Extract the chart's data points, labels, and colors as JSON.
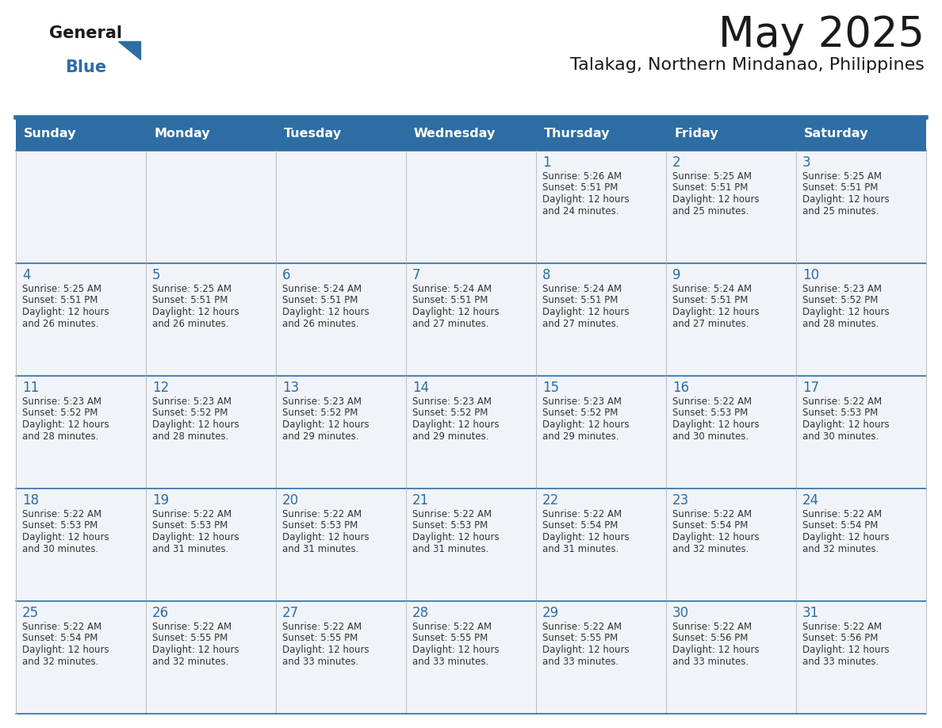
{
  "title": "May 2025",
  "subtitle": "Talakag, Northern Mindanao, Philippines",
  "days_of_week": [
    "Sunday",
    "Monday",
    "Tuesday",
    "Wednesday",
    "Thursday",
    "Friday",
    "Saturday"
  ],
  "header_bg": "#2E6DA4",
  "header_text": "#FFFFFF",
  "row_bg": "#F0F4F8",
  "day_number_color": "#2E6DA4",
  "cell_text_color": "#333333",
  "border_color": "#2E6DA4",
  "grid_line_color": "#AAAAAA",
  "calendar_data": [
    [
      null,
      null,
      null,
      null,
      {
        "day": 1,
        "sunrise": "5:26 AM",
        "sunset": "5:51 PM",
        "daylight": "12 hours and 24 minutes"
      },
      {
        "day": 2,
        "sunrise": "5:25 AM",
        "sunset": "5:51 PM",
        "daylight": "12 hours and 25 minutes"
      },
      {
        "day": 3,
        "sunrise": "5:25 AM",
        "sunset": "5:51 PM",
        "daylight": "12 hours and 25 minutes"
      }
    ],
    [
      {
        "day": 4,
        "sunrise": "5:25 AM",
        "sunset": "5:51 PM",
        "daylight": "12 hours and 26 minutes"
      },
      {
        "day": 5,
        "sunrise": "5:25 AM",
        "sunset": "5:51 PM",
        "daylight": "12 hours and 26 minutes"
      },
      {
        "day": 6,
        "sunrise": "5:24 AM",
        "sunset": "5:51 PM",
        "daylight": "12 hours and 26 minutes"
      },
      {
        "day": 7,
        "sunrise": "5:24 AM",
        "sunset": "5:51 PM",
        "daylight": "12 hours and 27 minutes"
      },
      {
        "day": 8,
        "sunrise": "5:24 AM",
        "sunset": "5:51 PM",
        "daylight": "12 hours and 27 minutes"
      },
      {
        "day": 9,
        "sunrise": "5:24 AM",
        "sunset": "5:51 PM",
        "daylight": "12 hours and 27 minutes"
      },
      {
        "day": 10,
        "sunrise": "5:23 AM",
        "sunset": "5:52 PM",
        "daylight": "12 hours and 28 minutes"
      }
    ],
    [
      {
        "day": 11,
        "sunrise": "5:23 AM",
        "sunset": "5:52 PM",
        "daylight": "12 hours and 28 minutes"
      },
      {
        "day": 12,
        "sunrise": "5:23 AM",
        "sunset": "5:52 PM",
        "daylight": "12 hours and 28 minutes"
      },
      {
        "day": 13,
        "sunrise": "5:23 AM",
        "sunset": "5:52 PM",
        "daylight": "12 hours and 29 minutes"
      },
      {
        "day": 14,
        "sunrise": "5:23 AM",
        "sunset": "5:52 PM",
        "daylight": "12 hours and 29 minutes"
      },
      {
        "day": 15,
        "sunrise": "5:23 AM",
        "sunset": "5:52 PM",
        "daylight": "12 hours and 29 minutes"
      },
      {
        "day": 16,
        "sunrise": "5:22 AM",
        "sunset": "5:53 PM",
        "daylight": "12 hours and 30 minutes"
      },
      {
        "day": 17,
        "sunrise": "5:22 AM",
        "sunset": "5:53 PM",
        "daylight": "12 hours and 30 minutes"
      }
    ],
    [
      {
        "day": 18,
        "sunrise": "5:22 AM",
        "sunset": "5:53 PM",
        "daylight": "12 hours and 30 minutes"
      },
      {
        "day": 19,
        "sunrise": "5:22 AM",
        "sunset": "5:53 PM",
        "daylight": "12 hours and 31 minutes"
      },
      {
        "day": 20,
        "sunrise": "5:22 AM",
        "sunset": "5:53 PM",
        "daylight": "12 hours and 31 minutes"
      },
      {
        "day": 21,
        "sunrise": "5:22 AM",
        "sunset": "5:53 PM",
        "daylight": "12 hours and 31 minutes"
      },
      {
        "day": 22,
        "sunrise": "5:22 AM",
        "sunset": "5:54 PM",
        "daylight": "12 hours and 31 minutes"
      },
      {
        "day": 23,
        "sunrise": "5:22 AM",
        "sunset": "5:54 PM",
        "daylight": "12 hours and 32 minutes"
      },
      {
        "day": 24,
        "sunrise": "5:22 AM",
        "sunset": "5:54 PM",
        "daylight": "12 hours and 32 minutes"
      }
    ],
    [
      {
        "day": 25,
        "sunrise": "5:22 AM",
        "sunset": "5:54 PM",
        "daylight": "12 hours and 32 minutes"
      },
      {
        "day": 26,
        "sunrise": "5:22 AM",
        "sunset": "5:55 PM",
        "daylight": "12 hours and 32 minutes"
      },
      {
        "day": 27,
        "sunrise": "5:22 AM",
        "sunset": "5:55 PM",
        "daylight": "12 hours and 33 minutes"
      },
      {
        "day": 28,
        "sunrise": "5:22 AM",
        "sunset": "5:55 PM",
        "daylight": "12 hours and 33 minutes"
      },
      {
        "day": 29,
        "sunrise": "5:22 AM",
        "sunset": "5:55 PM",
        "daylight": "12 hours and 33 minutes"
      },
      {
        "day": 30,
        "sunrise": "5:22 AM",
        "sunset": "5:56 PM",
        "daylight": "12 hours and 33 minutes"
      },
      {
        "day": 31,
        "sunrise": "5:22 AM",
        "sunset": "5:56 PM",
        "daylight": "12 hours and 33 minutes"
      }
    ]
  ]
}
